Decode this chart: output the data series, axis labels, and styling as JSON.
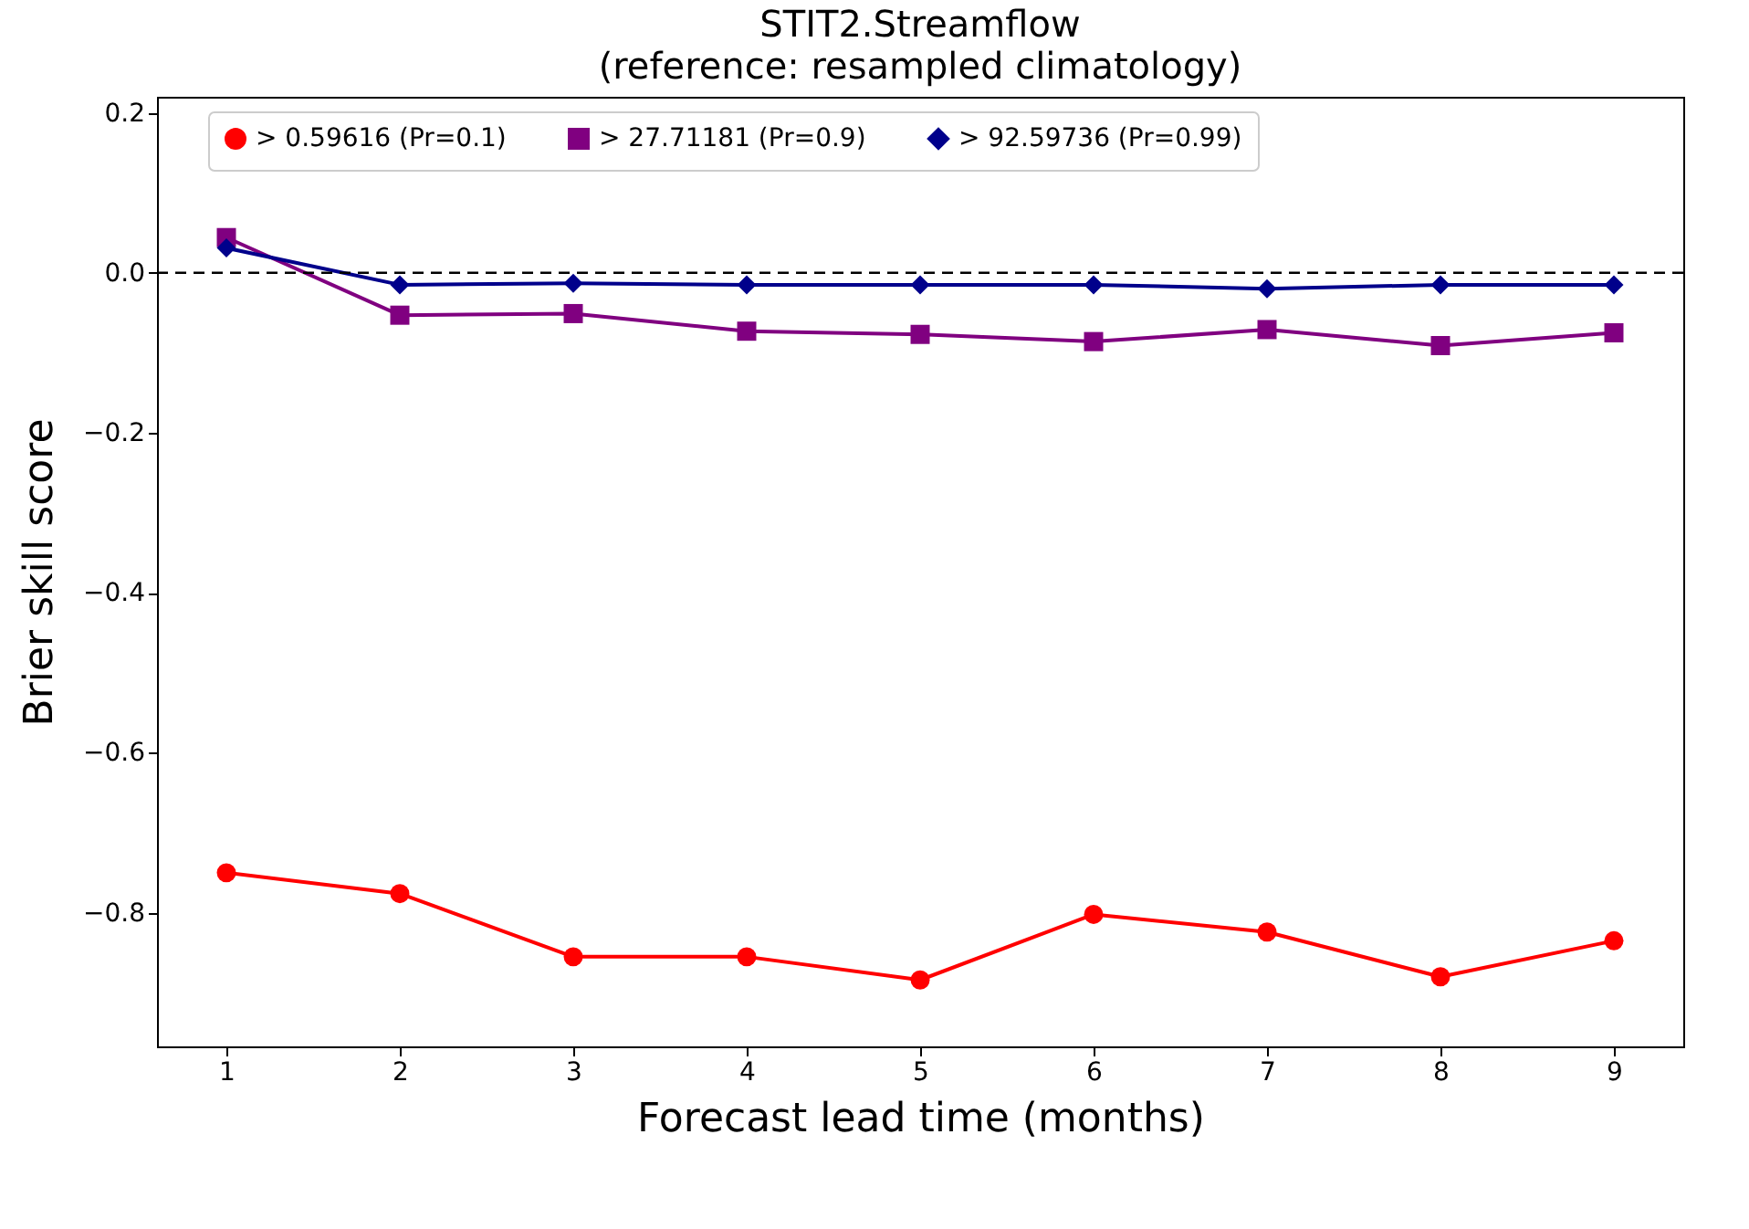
{
  "chart_data": {
    "type": "line",
    "title": "STIT2.Streamflow",
    "subtitle": "(reference: resampled climatology)",
    "xlabel": "Forecast lead time (months)",
    "ylabel": "Brier skill score",
    "x": [
      1,
      2,
      3,
      4,
      5,
      6,
      7,
      8,
      9
    ],
    "series": [
      {
        "name": "> 0.59616 (Pr=0.1)",
        "color": "#ff0000",
        "marker": "circle",
        "values": [
          -0.75,
          -0.776,
          -0.855,
          -0.855,
          -0.884,
          -0.802,
          -0.824,
          -0.88,
          -0.835
        ]
      },
      {
        "name": "> 27.71181 (Pr=0.9)",
        "color": "#800080",
        "marker": "square",
        "values": [
          0.044,
          -0.053,
          -0.051,
          -0.073,
          -0.077,
          -0.086,
          -0.071,
          -0.091,
          -0.075
        ]
      },
      {
        "name": "> 92.59736 (Pr=0.99)",
        "color": "#00008b",
        "marker": "diamond",
        "values": [
          0.031,
          -0.015,
          -0.013,
          -0.015,
          -0.015,
          -0.015,
          -0.02,
          -0.015,
          -0.015
        ]
      }
    ],
    "xlim": [
      0.6,
      9.4
    ],
    "xticks": [
      1,
      2,
      3,
      4,
      5,
      6,
      7,
      8,
      9
    ],
    "ylim": [
      -0.967,
      0.22
    ],
    "yticks": [
      {
        "value": 0.2,
        "label": "0.2"
      },
      {
        "value": 0.0,
        "label": "0.0"
      },
      {
        "value": -0.2,
        "label": "−0.2"
      },
      {
        "value": -0.4,
        "label": "−0.4"
      },
      {
        "value": -0.6,
        "label": "−0.6"
      },
      {
        "value": -0.8,
        "label": "−0.8"
      }
    ],
    "ref_lines": [
      {
        "axis": "y",
        "value": 0,
        "color": "#000000",
        "line_style": "dashed"
      }
    ],
    "legend": "top",
    "grid": false,
    "line_style": "solid"
  }
}
